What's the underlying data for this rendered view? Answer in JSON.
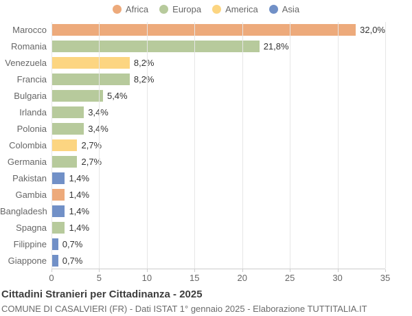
{
  "chart_data": {
    "type": "bar",
    "orientation": "horizontal",
    "title": "Cittadini Stranieri per Cittadinanza - 2025",
    "subtitle": "COMUNE DI CASALVIERI (FR) - Dati ISTAT 1° gennaio 2025 - Elaborazione TUTTITALIA.IT",
    "xlim": [
      0,
      35
    ],
    "x_ticks": [
      0,
      5,
      10,
      15,
      20,
      25,
      30,
      35
    ],
    "grid": true,
    "legend_position": "top",
    "groups": {
      "Africa": "#EDAA7B",
      "Europa": "#B7CA9C",
      "America": "#FCD581",
      "Asia": "#7190C7"
    },
    "legend": [
      {
        "label": "Africa",
        "color": "#EDAA7B"
      },
      {
        "label": "Europa",
        "color": "#B7CA9C"
      },
      {
        "label": "America",
        "color": "#FCD581"
      },
      {
        "label": "Asia",
        "color": "#7190C7"
      }
    ],
    "bars": [
      {
        "category": "Marocco",
        "value": 32.0,
        "label": "32,0%",
        "group": "Africa"
      },
      {
        "category": "Romania",
        "value": 21.8,
        "label": "21,8%",
        "group": "Europa"
      },
      {
        "category": "Venezuela",
        "value": 8.2,
        "label": "8,2%",
        "group": "America"
      },
      {
        "category": "Francia",
        "value": 8.2,
        "label": "8,2%",
        "group": "Europa"
      },
      {
        "category": "Bulgaria",
        "value": 5.4,
        "label": "5,4%",
        "group": "Europa"
      },
      {
        "category": "Irlanda",
        "value": 3.4,
        "label": "3,4%",
        "group": "Europa"
      },
      {
        "category": "Polonia",
        "value": 3.4,
        "label": "3,4%",
        "group": "Europa"
      },
      {
        "category": "Colombia",
        "value": 2.7,
        "label": "2,7%",
        "group": "America"
      },
      {
        "category": "Germania",
        "value": 2.7,
        "label": "2,7%",
        "group": "Europa"
      },
      {
        "category": "Pakistan",
        "value": 1.4,
        "label": "1,4%",
        "group": "Asia"
      },
      {
        "category": "Gambia",
        "value": 1.4,
        "label": "1,4%",
        "group": "Africa"
      },
      {
        "category": "Bangladesh",
        "value": 1.4,
        "label": "1,4%",
        "group": "Asia"
      },
      {
        "category": "Spagna",
        "value": 1.4,
        "label": "1,4%",
        "group": "Europa"
      },
      {
        "category": "Filippine",
        "value": 0.7,
        "label": "0,7%",
        "group": "Asia"
      },
      {
        "category": "Giappone",
        "value": 0.7,
        "label": "0,7%",
        "group": "Asia"
      }
    ],
    "colors": {
      "gridline": "#e6e6e6",
      "axis_line": "#cccccc",
      "category_label": "#666666",
      "value_label": "#333333"
    }
  }
}
